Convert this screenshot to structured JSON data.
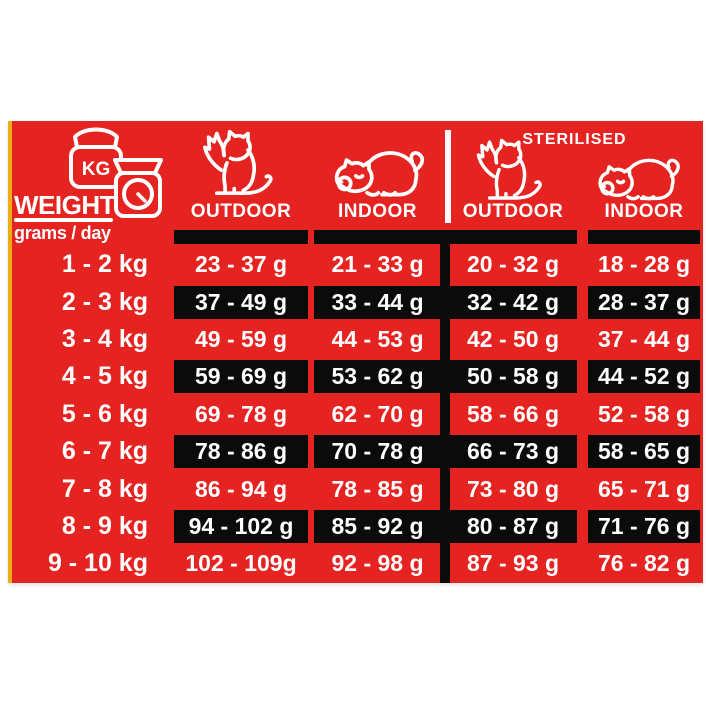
{
  "header": {
    "weight_title": "WEIGHT",
    "weight_subtitle": "grams / day",
    "unit_badge": "KG",
    "sterilised_label": "STERILISED",
    "columns": [
      {
        "id": "outdoor",
        "label": "OUTDOOR",
        "icon": "playful-cat"
      },
      {
        "id": "indoor",
        "label": "INDOOR",
        "icon": "crouching-cat"
      },
      {
        "id": "sterilised-outdoor",
        "label": "OUTDOOR",
        "icon": "playful-cat"
      },
      {
        "id": "sterilised-indoor",
        "label": "INDOOR",
        "icon": "crouching-cat"
      }
    ]
  },
  "colors": {
    "background_red": "#e52320",
    "band_black": "#0c0b0b",
    "text_white": "#ffffff",
    "edge_strip_yellow": "#ecae14"
  },
  "chart_data": {
    "type": "table",
    "title": "WEIGHT grams / day — daily feeding guide",
    "columns": [
      "WEIGHT (grams / day)",
      "OUTDOOR",
      "INDOOR",
      "STERILISED OUTDOOR",
      "STERILISED INDOOR"
    ],
    "rows": [
      {
        "weight": "1 - 2 kg",
        "band": false,
        "values": [
          "23 - 37 g",
          "21 - 33 g",
          "20 - 32 g",
          "18 - 28 g"
        ]
      },
      {
        "weight": "2 - 3 kg",
        "band": true,
        "values": [
          "37 - 49 g",
          "33 - 44 g",
          "32 - 42 g",
          "28 - 37 g"
        ]
      },
      {
        "weight": "3 - 4 kg",
        "band": false,
        "values": [
          "49 - 59 g",
          "44 - 53 g",
          "42 - 50 g",
          "37 - 44 g"
        ]
      },
      {
        "weight": "4 - 5 kg",
        "band": true,
        "values": [
          "59 - 69 g",
          "53 - 62 g",
          "50 - 58 g",
          "44 - 52 g"
        ]
      },
      {
        "weight": "5 - 6 kg",
        "band": false,
        "values": [
          "69 - 78 g",
          "62 - 70 g",
          "58 - 66 g",
          "52 - 58 g"
        ]
      },
      {
        "weight": "6 - 7 kg",
        "band": true,
        "values": [
          "78 - 86 g",
          "70 - 78 g",
          "66 - 73 g",
          "58 - 65 g"
        ]
      },
      {
        "weight": "7 - 8 kg",
        "band": false,
        "values": [
          "86 - 94 g",
          "78 - 85 g",
          "73 - 80 g",
          "65 - 71 g"
        ]
      },
      {
        "weight": "8 - 9 kg",
        "band": true,
        "values": [
          "94 - 102 g",
          "85 - 92 g",
          "80 - 87 g",
          "71 - 76 g"
        ]
      },
      {
        "weight": "9 - 10 kg",
        "band": false,
        "values": [
          "102 - 109g",
          "92 - 98 g",
          "87 - 93 g",
          "76 - 82 g"
        ]
      }
    ]
  }
}
